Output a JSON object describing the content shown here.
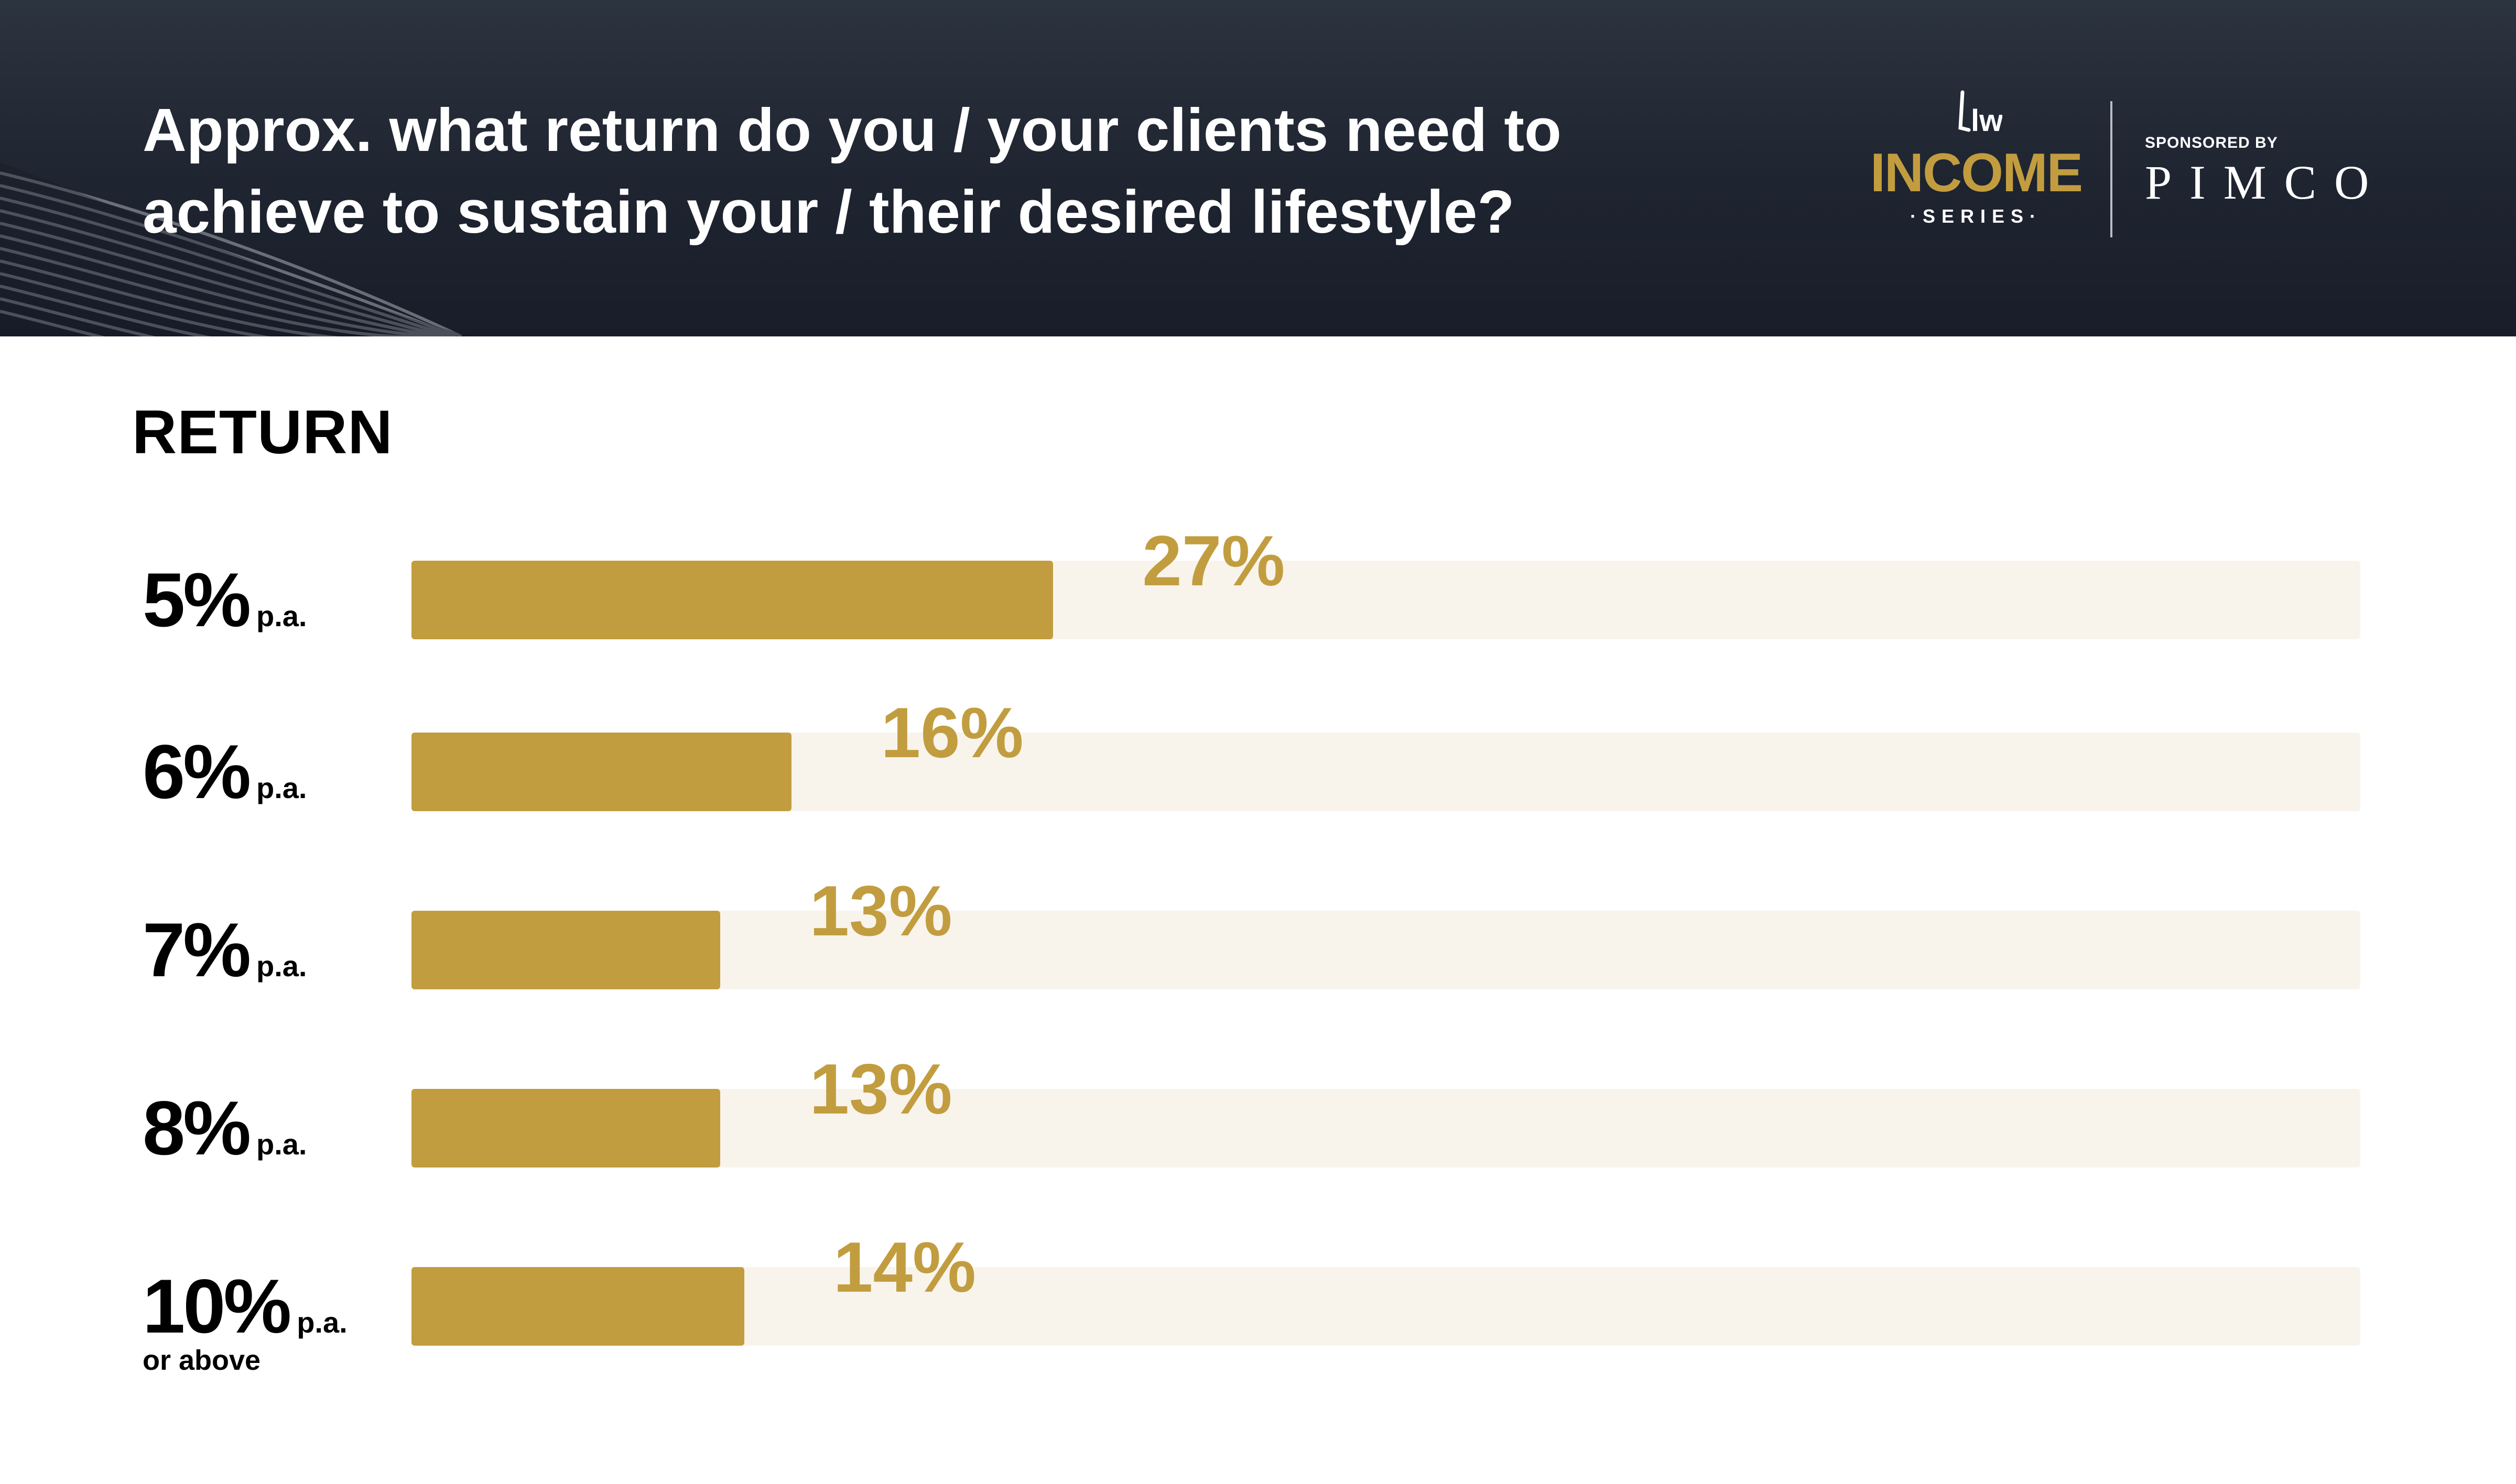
{
  "header": {
    "title_lines": [
      "Approx. what return do you / your clients need to",
      "achieve to sustain your / their desired lifestyle?"
    ],
    "logo": {
      "mark": "lw",
      "name": "INCOME",
      "sub": "·SERIES·"
    },
    "sponsor": {
      "label": "SPONSORED BY",
      "name": "PIMCO"
    }
  },
  "colors": {
    "header_bg": "#1e2430",
    "accent": "#c29d3f",
    "track": "#f8f4ec",
    "text": "#000000"
  },
  "chart_data": {
    "type": "bar",
    "orientation": "horizontal",
    "title": "RETURN",
    "categories": [
      {
        "value": "5%",
        "unit": "p.a.",
        "sub": ""
      },
      {
        "value": "6%",
        "unit": "p.a.",
        "sub": ""
      },
      {
        "value": "7%",
        "unit": "p.a.",
        "sub": ""
      },
      {
        "value": "8%",
        "unit": "p.a.",
        "sub": ""
      },
      {
        "value": "10%",
        "unit": "p.a.",
        "sub": "or above"
      }
    ],
    "values": [
      27,
      16,
      13,
      13,
      14
    ],
    "value_labels": [
      "27%",
      "16%",
      "13%",
      "13%",
      "14%"
    ],
    "xlim": [
      0,
      82
    ],
    "grid": false,
    "legend": "none"
  }
}
